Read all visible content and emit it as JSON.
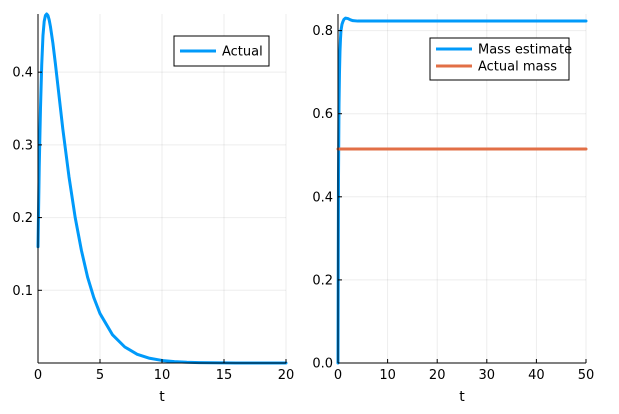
{
  "chart_data": [
    {
      "type": "line",
      "xlabel": "t",
      "ylabel": "",
      "xlim": [
        0,
        20
      ],
      "ylim": [
        0,
        0.48
      ],
      "xticks": [
        0,
        5,
        10,
        15,
        20
      ],
      "yticks": [
        0.1,
        0.2,
        0.3,
        0.4
      ],
      "grid": true,
      "legend_position": "top-right",
      "series": [
        {
          "name": "Actual",
          "color": "#009AFA",
          "x": [
            0,
            0.1,
            0.2,
            0.3,
            0.4,
            0.5,
            0.6,
            0.7,
            0.8,
            0.9,
            1.0,
            1.2,
            1.4,
            1.6,
            1.8,
            2.0,
            2.5,
            3.0,
            3.5,
            4.0,
            4.5,
            5.0,
            6.0,
            7.0,
            8.0,
            9.0,
            10.0,
            11.0,
            12.0,
            13.0,
            14.0,
            15.0,
            16.0,
            17.0,
            18.0,
            19.0,
            20.0
          ],
          "values": [
            0.16,
            0.27,
            0.35,
            0.41,
            0.45,
            0.47,
            0.478,
            0.48,
            0.478,
            0.472,
            0.463,
            0.44,
            0.412,
            0.382,
            0.352,
            0.322,
            0.256,
            0.2,
            0.155,
            0.118,
            0.09,
            0.068,
            0.039,
            0.022,
            0.012,
            0.0065,
            0.0035,
            0.0019,
            0.001,
            0.0005,
            0.0003,
            0.00015,
            8e-05,
            4e-05,
            2e-05,
            1e-05,
            0.0
          ]
        }
      ]
    },
    {
      "type": "line",
      "xlabel": "t",
      "ylabel": "",
      "xlim": [
        0,
        50
      ],
      "ylim": [
        0,
        0.84
      ],
      "xticks": [
        0,
        10,
        20,
        30,
        40,
        50
      ],
      "yticks": [
        0.0,
        0.2,
        0.4,
        0.6,
        0.8
      ],
      "grid": true,
      "legend_position": "top-right",
      "series": [
        {
          "name": "Mass estimate",
          "color": "#009AFA",
          "x": [
            0,
            0.05,
            0.1,
            0.2,
            0.3,
            0.4,
            0.5,
            0.6,
            0.8,
            1.0,
            1.2,
            1.5,
            2.0,
            2.5,
            3.0,
            4.0,
            5.0,
            10.0,
            20.0,
            30.0,
            40.0,
            50.0
          ],
          "values": [
            0.0,
            0.25,
            0.45,
            0.62,
            0.7,
            0.75,
            0.78,
            0.8,
            0.815,
            0.822,
            0.827,
            0.83,
            0.829,
            0.826,
            0.824,
            0.823,
            0.823,
            0.823,
            0.823,
            0.823,
            0.823,
            0.823
          ]
        },
        {
          "name": "Actual mass",
          "color": "#E26F46",
          "x": [
            0,
            50
          ],
          "values": [
            0.515,
            0.515
          ]
        }
      ]
    }
  ]
}
